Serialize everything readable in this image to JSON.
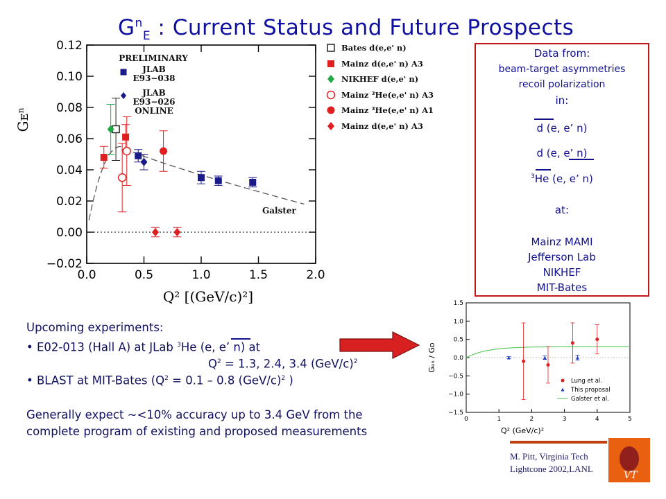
{
  "title": {
    "main": "G",
    "sup": "n",
    "sub": "E",
    "rest": " : Current Status and Future Prospects"
  },
  "main_plot": {
    "chart_data": {
      "type": "scatter",
      "title": "",
      "xlabel": "Q² [(GeV/c)²]",
      "ylabel": "Gᴇⁿ",
      "xlim": [
        0.0,
        2.0
      ],
      "ylim": [
        -0.02,
        0.12
      ],
      "x_ticks": [
        "0.0",
        "0.5",
        "1.0",
        "1.5",
        "2.0"
      ],
      "y_ticks": [
        "−0.02",
        "0.00",
        "0.02",
        "0.04",
        "0.06",
        "0.08",
        "0.10",
        "0.12"
      ],
      "annotations": [
        "PRELIMINARY",
        "JLAB",
        "E93−038",
        "JLAB",
        "E93−026",
        "ONLINE",
        "Galster"
      ],
      "series": [
        {
          "name": "Bates d(e,e'n)",
          "marker": "open-square",
          "color": "#222222",
          "points": [
            {
              "x": 0.255,
              "y": 0.066,
              "err": 0.02
            }
          ]
        },
        {
          "name": "Mainz d(e,e'n) A3",
          "marker": "filled-square",
          "color": "#e02020",
          "points": [
            {
              "x": 0.15,
              "y": 0.048,
              "err": 0.007
            },
            {
              "x": 0.34,
              "y": 0.061,
              "err": 0.008
            }
          ]
        },
        {
          "name": "NIKHEF d(e,e'n)",
          "marker": "diamond",
          "color": "#22aa44",
          "points": [
            {
              "x": 0.21,
              "y": 0.066,
              "err": 0.016
            }
          ]
        },
        {
          "name": "Mainz 3He(e,e'n) A3",
          "marker": "open-circle",
          "color": "#e02020",
          "points": [
            {
              "x": 0.31,
              "y": 0.035,
              "err": 0.022
            },
            {
              "x": 0.35,
              "y": 0.052,
              "err": 0.022
            }
          ]
        },
        {
          "name": "Mainz 3He(e,e'n) A1",
          "marker": "filled-circle",
          "color": "#e02020",
          "points": [
            {
              "x": 0.67,
              "y": 0.052,
              "err": 0.013
            }
          ]
        },
        {
          "name": "Mainz d(e,e'n) A3",
          "marker": "filled-diamond",
          "color": "#e02020",
          "points": [
            {
              "x": 0.6,
              "y": 0.0,
              "err": 0.003
            },
            {
              "x": 0.79,
              "y": 0.0,
              "err": 0.003
            }
          ]
        },
        {
          "name": "JLAB d(e,e'n) E93-038",
          "marker": "filled-square",
          "color": "#1a1a8a",
          "points": [
            {
              "x": 0.45,
              "y": 0.049,
              "err": 0.004
            },
            {
              "x": 1.0,
              "y": 0.035,
              "err": 0.004
            },
            {
              "x": 1.15,
              "y": 0.033,
              "err": 0.003
            },
            {
              "x": 1.45,
              "y": 0.032,
              "err": 0.003
            }
          ]
        },
        {
          "name": "JLAB d(e,e'n) E93-026",
          "marker": "filled-diamond",
          "color": "#1a1a8a",
          "points": [
            {
              "x": 0.5,
              "y": 0.045,
              "err": 0.005
            }
          ]
        }
      ],
      "curve": {
        "name": "Galster",
        "style": "dashed",
        "color": "#555555",
        "peak_x": 0.3,
        "peak_y": 0.055,
        "end_x": 1.9,
        "end_y": 0.018
      }
    }
  },
  "legend": [
    {
      "marker": "open-square",
      "color": "#222222",
      "label": "Bates  d(e,e' n)"
    },
    {
      "marker": "filled-square",
      "color": "#e02020",
      "label": "Mainz  d(e,e' n)     A3"
    },
    {
      "marker": "diamond",
      "color": "#22aa44",
      "label": "NIKHEF  d(e,e' n)"
    },
    {
      "marker": "open-circle",
      "color": "#e02020",
      "label": "Mainz  ³He(e,e' n)   A3"
    },
    {
      "marker": "filled-circle",
      "color": "#e02020",
      "label": "Mainz  ³He(e,e' n)   A1"
    },
    {
      "marker": "filled-diamond",
      "color": "#e02020",
      "label": "Mainz  d(e,e' n)     A3"
    }
  ],
  "info_box": {
    "lines": [
      "Data from:",
      "beam-target asymmetries",
      "recoil polarization",
      "in:",
      "d (e, e’ n)",
      "d (e, e’ n)",
      "3",
      "He (e, e’ n)",
      "at:",
      "Mainz MAMI",
      "Jefferson Lab",
      "NIKHEF",
      "MIT-Bates"
    ]
  },
  "upcoming": {
    "heading": "Upcoming experiments:",
    "item1_a": "•  E02-013 (Hall A) at JLab ",
    "item1_sup": "3",
    "item1_b": "He  (e, e’ n) at",
    "item1_q": "Q",
    "item1_q_sup": "2",
    "item1_vals": " = 1.3, 2.4, 3.4 (GeV/c)",
    "item1_vals_sup": "2",
    "item2_a": "• BLAST at MIT-Bates (Q",
    "item2_sup": "2",
    "item2_b": " = 0.1 – 0.8 (GeV/c)",
    "item2_sup2": "2",
    "item2_c": " )",
    "summary1": "Generally expect ~<10% accuracy up to 3.4 GeV from the",
    "summary2": "complete program of existing and proposed measurements"
  },
  "small_plot": {
    "chart_data": {
      "type": "scatter",
      "xlabel": "Q² (GeV/c)²",
      "ylabel": "Gₑₙ / Gᴅ",
      "xlim": [
        0,
        5
      ],
      "ylim": [
        -1.5,
        1.5
      ],
      "x_ticks": [
        "0",
        "1",
        "2",
        "3",
        "4",
        "5"
      ],
      "y_ticks": [
        "−1.5",
        "−1.0",
        "−0.5",
        "0.0",
        "0.5",
        "1.0",
        "1.5"
      ],
      "series": [
        {
          "name": "Lung et al.",
          "marker": "filled-circle",
          "color": "#e02020",
          "points": [
            {
              "x": 1.75,
              "y": -0.1,
              "err": 1.05
            },
            {
              "x": 2.5,
              "y": -0.2,
              "err": 0.5
            },
            {
              "x": 3.25,
              "y": 0.4,
              "err": 0.55
            },
            {
              "x": 4.0,
              "y": 0.5,
              "err": 0.4
            }
          ]
        },
        {
          "name": "This proposal",
          "marker": "filled-triangle",
          "color": "#2040c0",
          "points": [
            {
              "x": 1.3,
              "y": 0.0,
              "err": 0.03
            },
            {
              "x": 2.4,
              "y": 0.0,
              "err": 0.05
            },
            {
              "x": 3.4,
              "y": 0.0,
              "err": 0.07
            }
          ]
        }
      ],
      "curve": {
        "name": "Galster et al.",
        "style": "solid",
        "color": "#40c040"
      }
    }
  },
  "credit": {
    "line1": "M. Pitt, Virginia Tech",
    "line2": "Lightcone 2002,LANL"
  },
  "colors": {
    "title": "#1010a0",
    "box_border": "#c01818",
    "arrow": "#d82020",
    "logo": "#e86010"
  }
}
